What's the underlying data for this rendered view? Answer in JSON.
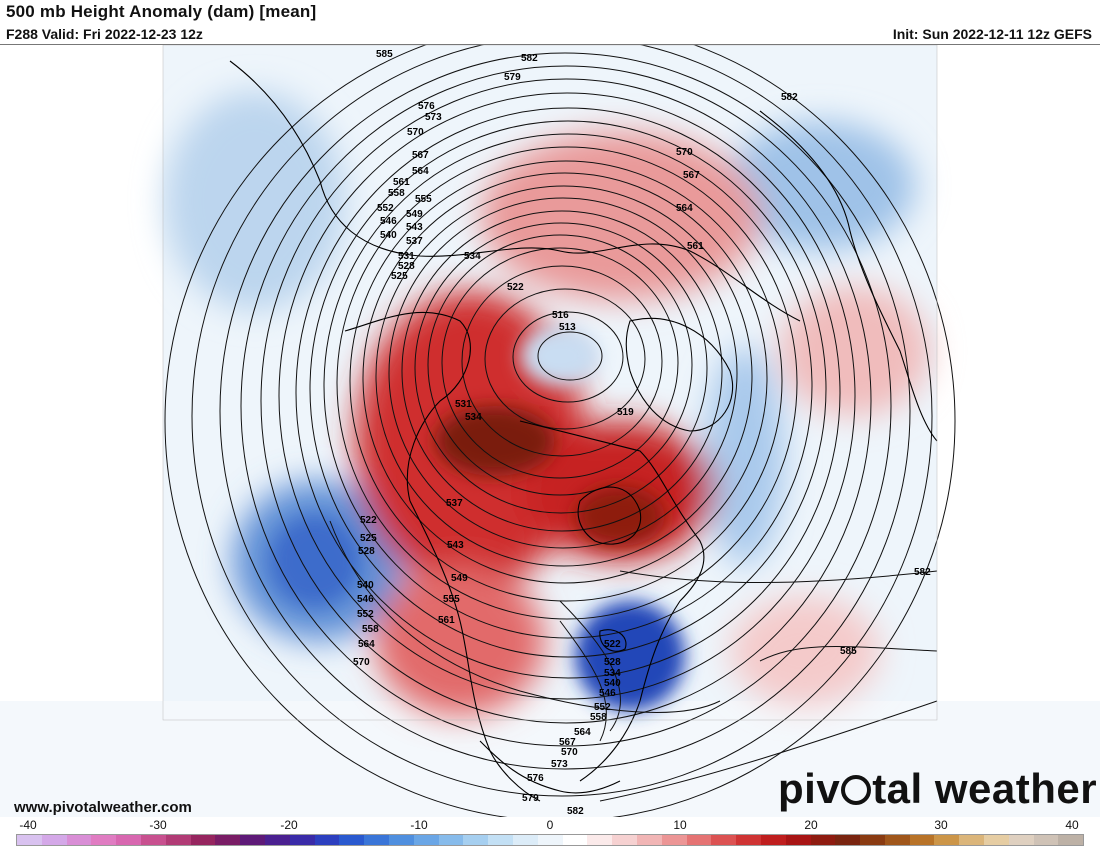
{
  "header": {
    "title": "500 mb Height Anomaly (dam) [mean]",
    "valid": "F288 Valid: Fri 2022-12-23 12z",
    "init": "Init: Sun 2022-12-11 12z GEFS"
  },
  "footer": {
    "site": "www.pivotalweather.com",
    "logo_left": "piv",
    "logo_right": "tal weather"
  },
  "colorbar": {
    "ticks": [
      "-40",
      "-30",
      "-20",
      "-10",
      "0",
      "10",
      "20",
      "30",
      "40"
    ],
    "colors": [
      "#d9c2f0",
      "#d4a8e8",
      "#d98ed6",
      "#e07cc2",
      "#d867b0",
      "#c8508f",
      "#b13b75",
      "#96255f",
      "#7a1d66",
      "#5e1a78",
      "#4a2090",
      "#3a2ba8",
      "#2c3fbf",
      "#2a59cf",
      "#3a75d8",
      "#4f8fdf",
      "#6aa6e6",
      "#87bbeb",
      "#a6cff0",
      "#c3e0f5",
      "#dcecf8",
      "#eef5fb",
      "#ffffff",
      "#fbeaea",
      "#f6d1d1",
      "#f1b5b5",
      "#ec9595",
      "#e57373",
      "#dc5252",
      "#cf3333",
      "#bf1e1e",
      "#a81414",
      "#8e1b10",
      "#7a2410",
      "#8a3b12",
      "#a0561b",
      "#b87328",
      "#cc9548",
      "#dbb57a",
      "#e6cda3",
      "#dfd0c0",
      "#cfc2b6",
      "#bdb1a6"
    ]
  },
  "map": {
    "contour_labels": [
      "585",
      "582",
      "579",
      "576",
      "573",
      "570",
      "567",
      "564",
      "561",
      "558",
      "555",
      "552",
      "549",
      "546",
      "543",
      "540",
      "537",
      "534",
      "531",
      "528",
      "525",
      "522",
      "519",
      "516",
      "513",
      "582",
      "570",
      "567",
      "564",
      "561",
      "522",
      "525",
      "528",
      "540",
      "546",
      "552",
      "558",
      "564",
      "570",
      "531",
      "534",
      "537",
      "543",
      "549",
      "555",
      "561",
      "522",
      "528",
      "534",
      "540",
      "546",
      "552",
      "558",
      "564",
      "567",
      "570",
      "573",
      "576",
      "579",
      "582",
      "582",
      "585"
    ],
    "anomalies": [
      {
        "name": "alaska-arctic-ridge",
        "sign": "positive"
      },
      {
        "name": "hudson-bay-ridge",
        "sign": "positive"
      },
      {
        "name": "siberia-ridge",
        "sign": "positive"
      },
      {
        "name": "western-europe-ridge",
        "sign": "positive"
      },
      {
        "name": "atlantic-ridge",
        "sign": "positive"
      },
      {
        "name": "pacific-trough",
        "sign": "negative"
      },
      {
        "name": "great-lakes-trough",
        "sign": "negative"
      },
      {
        "name": "north-pacific-trough",
        "sign": "negative"
      },
      {
        "name": "scandinavia-trough",
        "sign": "negative"
      },
      {
        "name": "greenland-trough",
        "sign": "negative"
      }
    ]
  }
}
